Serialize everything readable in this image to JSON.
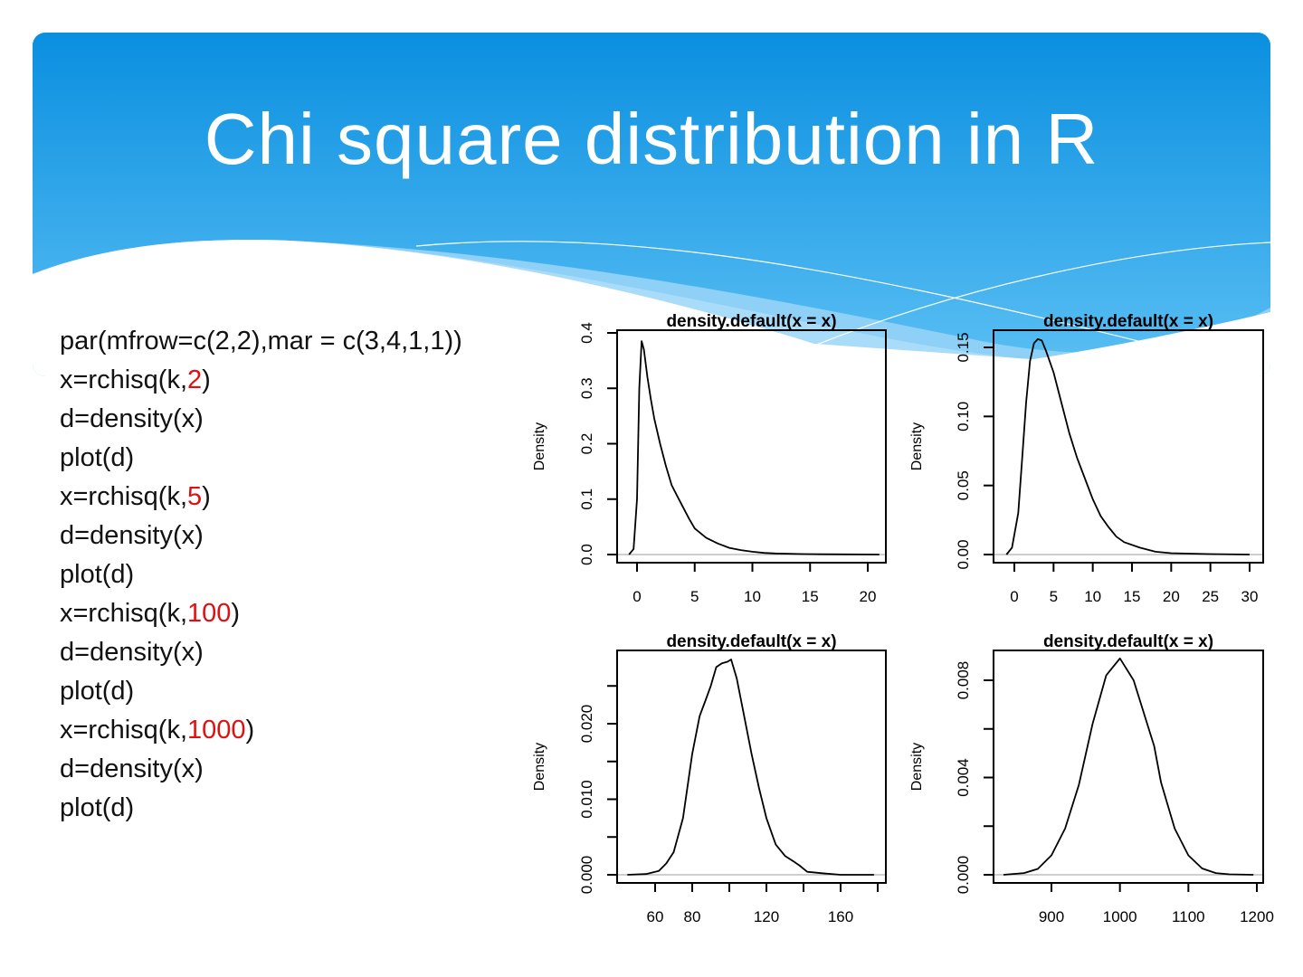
{
  "slide": {
    "title": "Chi square distribution in R",
    "accent_color": "#0a8fe0",
    "code_lines": [
      [
        {
          "text": "par(mfrow=c(2,2),mar = c(3,4,1,1))",
          "hl": false
        }
      ],
      [
        {
          "text": "x=rchisq(k,",
          "hl": false
        },
        {
          "text": "2",
          "hl": true
        },
        {
          "text": ")",
          "hl": false
        }
      ],
      [
        {
          "text": "d=density(x)",
          "hl": false
        }
      ],
      [
        {
          "text": "plot(d)",
          "hl": false
        }
      ],
      [
        {
          "text": "x=rchisq(k,",
          "hl": false
        },
        {
          "text": "5",
          "hl": true
        },
        {
          "text": ")",
          "hl": false
        }
      ],
      [
        {
          "text": "d=density(x)",
          "hl": false
        }
      ],
      [
        {
          "text": "plot(d)",
          "hl": false
        }
      ],
      [
        {
          "text": "x=rchisq(k,",
          "hl": false
        },
        {
          "text": "100",
          "hl": true
        },
        {
          "text": ")",
          "hl": false
        }
      ],
      [
        {
          "text": "d=density(x)",
          "hl": false
        }
      ],
      [
        {
          "text": "plot(d)",
          "hl": false
        }
      ],
      [
        {
          "text": "x=rchisq(k,",
          "hl": false
        },
        {
          "text": "1000",
          "hl": true
        },
        {
          "text": ")",
          "hl": false
        }
      ],
      [
        {
          "text": "d=density(x)",
          "hl": false
        }
      ],
      [
        {
          "text": "plot(d)",
          "hl": false
        }
      ]
    ],
    "highlight_color": "#e01010"
  },
  "chart_data": [
    {
      "type": "line",
      "title": "density.default(x = x)",
      "xlabel": "",
      "ylabel": "Density",
      "xticks": [
        {
          "v": 0,
          "label": "0"
        },
        {
          "v": 5,
          "label": "5"
        },
        {
          "v": 10,
          "label": "10"
        },
        {
          "v": 15,
          "label": "15"
        },
        {
          "v": 20,
          "label": "20"
        }
      ],
      "yticks": [
        {
          "v": 0,
          "label": "0.0"
        },
        {
          "v": 0.1,
          "label": "0.1"
        },
        {
          "v": 0.2,
          "label": "0.2"
        },
        {
          "v": 0.3,
          "label": "0.3"
        },
        {
          "v": 0.4,
          "label": "0.4"
        }
      ],
      "x": [
        -0.7,
        -0.3,
        0,
        0.2,
        0.4,
        0.6,
        0.9,
        1.2,
        1.5,
        2,
        2.5,
        3,
        3.5,
        4,
        4.5,
        5,
        6,
        7,
        8,
        9,
        10,
        11,
        12,
        14,
        16,
        18,
        21
      ],
      "y": [
        0,
        0.01,
        0.1,
        0.3,
        0.385,
        0.37,
        0.32,
        0.28,
        0.245,
        0.2,
        0.16,
        0.125,
        0.105,
        0.085,
        0.065,
        0.047,
        0.03,
        0.02,
        0.012,
        0.008,
        0.005,
        0.003,
        0.002,
        0.001,
        0.0005,
        0.0003,
        0
      ]
    },
    {
      "type": "line",
      "title": "density.default(x = x)",
      "xlabel": "",
      "ylabel": "Density",
      "xticks": [
        {
          "v": 0,
          "label": "0"
        },
        {
          "v": 5,
          "label": "5"
        },
        {
          "v": 10,
          "label": "10"
        },
        {
          "v": 15,
          "label": "15"
        },
        {
          "v": 20,
          "label": "20"
        },
        {
          "v": 25,
          "label": "25"
        },
        {
          "v": 30,
          "label": "30"
        }
      ],
      "yticks": [
        {
          "v": 0,
          "label": "0.00"
        },
        {
          "v": 0.05,
          "label": "0.05"
        },
        {
          "v": 0.1,
          "label": "0.10"
        },
        {
          "v": 0.15,
          "label": "0.15"
        }
      ],
      "x": [
        -1,
        -0.3,
        0.5,
        1,
        1.5,
        2,
        2.5,
        3,
        3.5,
        4,
        5,
        6,
        7,
        8,
        9,
        10,
        11,
        12,
        13,
        14,
        16,
        18,
        20,
        25,
        30
      ],
      "y": [
        0,
        0.005,
        0.03,
        0.07,
        0.11,
        0.14,
        0.153,
        0.156,
        0.155,
        0.148,
        0.132,
        0.11,
        0.088,
        0.07,
        0.055,
        0.04,
        0.028,
        0.02,
        0.013,
        0.009,
        0.005,
        0.002,
        0.001,
        0.0003,
        0
      ]
    },
    {
      "type": "line",
      "title": "density.default(x = x)",
      "xlabel": "",
      "ylabel": "Density",
      "xticks": [
        {
          "v": 60,
          "label": "60"
        },
        {
          "v": 80,
          "label": "80"
        },
        {
          "v": 100,
          "label": ""
        },
        {
          "v": 120,
          "label": "120"
        },
        {
          "v": 140,
          "label": ""
        },
        {
          "v": 160,
          "label": "160"
        },
        {
          "v": 180,
          "label": ""
        }
      ],
      "yticks": [
        {
          "v": 0,
          "label": "0.000"
        },
        {
          "v": 0.005,
          "label": ""
        },
        {
          "v": 0.01,
          "label": "0.010"
        },
        {
          "v": 0.015,
          "label": ""
        },
        {
          "v": 0.02,
          "label": "0.020"
        },
        {
          "v": 0.025,
          "label": ""
        }
      ],
      "x": [
        45,
        55,
        62,
        66,
        70,
        75,
        80,
        84,
        87,
        90,
        93,
        96,
        99,
        101,
        104,
        108,
        112,
        116,
        120,
        125,
        130,
        135,
        138,
        142,
        150,
        160,
        178
      ],
      "y": [
        0,
        0.0001,
        0.0005,
        0.0015,
        0.003,
        0.0075,
        0.016,
        0.021,
        0.023,
        0.025,
        0.0275,
        0.028,
        0.0282,
        0.0285,
        0.026,
        0.021,
        0.016,
        0.0115,
        0.0075,
        0.004,
        0.0025,
        0.0017,
        0.0012,
        0.0004,
        0.0002,
        0,
        0
      ]
    },
    {
      "type": "line",
      "title": "density.default(x = x)",
      "xlabel": "",
      "ylabel": "Density",
      "xticks": [
        {
          "v": 900,
          "label": "900"
        },
        {
          "v": 1000,
          "label": "1000"
        },
        {
          "v": 1100,
          "label": "1100"
        },
        {
          "v": 1200,
          "label": "1200"
        }
      ],
      "yticks": [
        {
          "v": 0,
          "label": "0.000"
        },
        {
          "v": 0.002,
          "label": ""
        },
        {
          "v": 0.004,
          "label": "0.004"
        },
        {
          "v": 0.006,
          "label": ""
        },
        {
          "v": 0.008,
          "label": "0.008"
        }
      ],
      "x": [
        830,
        860,
        880,
        900,
        920,
        940,
        960,
        980,
        1000,
        1020,
        1040,
        1050,
        1060,
        1080,
        1100,
        1120,
        1140,
        1160,
        1195
      ],
      "y": [
        0,
        7e-05,
        0.00024,
        0.0008,
        0.0019,
        0.0037,
        0.0062,
        0.0082,
        0.0089,
        0.008,
        0.0062,
        0.0053,
        0.0038,
        0.0019,
        0.0008,
        0.00026,
        7e-05,
        2e-05,
        0
      ]
    }
  ]
}
